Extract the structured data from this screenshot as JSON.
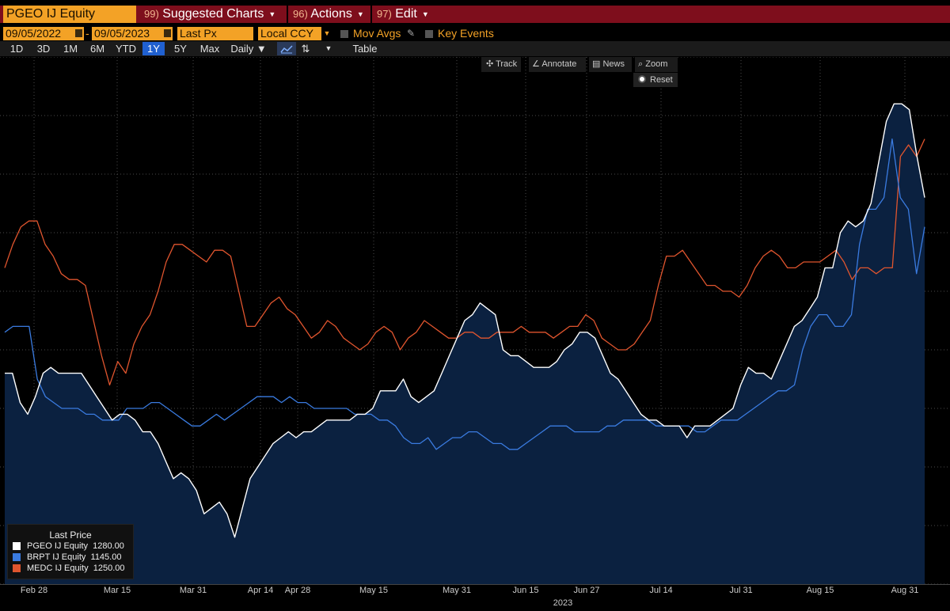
{
  "header": {
    "ticker": "PGEO IJ Equity",
    "menus": [
      {
        "num": "99)",
        "label": "Suggested Charts"
      },
      {
        "num": "96)",
        "label": "Actions"
      },
      {
        "num": "97)",
        "label": "Edit"
      }
    ]
  },
  "controls": {
    "start_date": "09/05/2022",
    "end_date": "09/05/2023",
    "field": "Last Px",
    "currency": "Local CCY",
    "mov_avgs": "Mov Avgs",
    "key_events": "Key Events"
  },
  "toolbar": {
    "ranges": [
      "1D",
      "3D",
      "1M",
      "6M",
      "YTD",
      "1Y",
      "5Y",
      "Max"
    ],
    "active_range": "1Y",
    "frequency": "Daily ▼",
    "table": "Table"
  },
  "chart_tools": {
    "track": "Track",
    "annotate": "Annotate",
    "news": "News",
    "zoom": "Zoom",
    "reset": "Reset"
  },
  "colors": {
    "pgeo": "#ffffff",
    "brpt": "#3a7be0",
    "medc": "#e0552e",
    "area_fill": "#0b2140",
    "accent": "#f3a226",
    "menu_bar": "#7e0e1c"
  },
  "legend": {
    "title": "Last Price",
    "items": [
      {
        "name": "PGEO IJ Equity",
        "value": "1280.00",
        "color": "#ffffff"
      },
      {
        "name": "BRPT IJ Equity",
        "value": "1145.00",
        "color": "#3a7be0"
      },
      {
        "name": "MEDC IJ Equity",
        "value": "1250.00",
        "color": "#e0552e"
      }
    ]
  },
  "xaxis": {
    "ticks": [
      "Feb 28",
      "Mar 15",
      "Mar 31",
      "Apr 14",
      "Apr 28",
      "May 15",
      "May 31",
      "Jun 15",
      "Jun 27",
      "Jul 14",
      "Jul 31",
      "Aug 15",
      "Aug 31"
    ],
    "year": "2023"
  },
  "chart_data": {
    "type": "line",
    "series": [
      {
        "name": "PGEO IJ Equity",
        "values": [
          5.6,
          5.6,
          5.1,
          4.9,
          5.2,
          5.6,
          5.7,
          5.6,
          5.6,
          5.6,
          5.6,
          5.4,
          5.2,
          5.0,
          4.8,
          4.9,
          4.9,
          4.8,
          4.6,
          4.6,
          4.4,
          4.1,
          3.8,
          3.9,
          3.8,
          3.6,
          3.2,
          3.3,
          3.4,
          3.2,
          2.8,
          3.3,
          3.8,
          4.0,
          4.2,
          4.4,
          4.5,
          4.6,
          4.5,
          4.6,
          4.6,
          4.7,
          4.8,
          4.8,
          4.8,
          4.8,
          4.9,
          4.9,
          5.0,
          5.3,
          5.3,
          5.3,
          5.5,
          5.2,
          5.1,
          5.2,
          5.3,
          5.6,
          5.9,
          6.2,
          6.5,
          6.6,
          6.8,
          6.7,
          6.6,
          6.0,
          5.9,
          5.9,
          5.8,
          5.7,
          5.7,
          5.7,
          5.8,
          6.0,
          6.1,
          6.3,
          6.3,
          6.2,
          5.9,
          5.6,
          5.5,
          5.3,
          5.1,
          4.9,
          4.8,
          4.8,
          4.7,
          4.7,
          4.7,
          4.5,
          4.7,
          4.7,
          4.7,
          4.8,
          4.9,
          5.0,
          5.4,
          5.7,
          5.6,
          5.6,
          5.5,
          5.8,
          6.1,
          6.4,
          6.5,
          6.7,
          6.9,
          7.4,
          7.4,
          8.0,
          8.2,
          8.1,
          8.2,
          8.5,
          9.2,
          9.9,
          10.2,
          10.2,
          10.1,
          9.3,
          8.6
        ],
        "color": "#ffffff"
      },
      {
        "name": "BRPT IJ Equity",
        "values": [
          6.3,
          6.4,
          6.4,
          6.4,
          5.5,
          5.2,
          5.1,
          5.0,
          5.0,
          5.0,
          4.9,
          4.9,
          4.8,
          4.8,
          4.8,
          5.0,
          5.0,
          5.0,
          5.1,
          5.1,
          5.0,
          4.9,
          4.8,
          4.7,
          4.7,
          4.8,
          4.9,
          4.8,
          4.9,
          5.0,
          5.1,
          5.2,
          5.2,
          5.2,
          5.1,
          5.2,
          5.1,
          5.1,
          5.0,
          5.0,
          5.0,
          5.0,
          5.0,
          4.9,
          4.9,
          4.9,
          4.8,
          4.8,
          4.7,
          4.5,
          4.4,
          4.4,
          4.5,
          4.3,
          4.4,
          4.5,
          4.5,
          4.6,
          4.6,
          4.5,
          4.4,
          4.4,
          4.3,
          4.3,
          4.4,
          4.5,
          4.6,
          4.7,
          4.7,
          4.7,
          4.6,
          4.6,
          4.6,
          4.6,
          4.7,
          4.7,
          4.8,
          4.8,
          4.8,
          4.8,
          4.7,
          4.7,
          4.7,
          4.7,
          4.7,
          4.6,
          4.6,
          4.7,
          4.8,
          4.8,
          4.8,
          4.9,
          5.0,
          5.1,
          5.2,
          5.3,
          5.3,
          5.4,
          6.0,
          6.4,
          6.6,
          6.6,
          6.4,
          6.4,
          6.6,
          7.8,
          8.4,
          8.4,
          8.6,
          9.6,
          8.6,
          8.4,
          7.3,
          8.1
        ],
        "color": "#3a7be0"
      },
      {
        "name": "MEDC IJ Equity",
        "values": [
          7.4,
          7.8,
          8.1,
          8.2,
          8.2,
          7.8,
          7.6,
          7.3,
          7.2,
          7.2,
          7.1,
          6.5,
          5.9,
          5.4,
          5.8,
          5.6,
          6.1,
          6.4,
          6.6,
          7.0,
          7.5,
          7.8,
          7.8,
          7.7,
          7.6,
          7.5,
          7.7,
          7.7,
          7.6,
          7.0,
          6.4,
          6.4,
          6.6,
          6.8,
          6.9,
          6.7,
          6.6,
          6.4,
          6.2,
          6.3,
          6.5,
          6.4,
          6.2,
          6.1,
          6.0,
          6.1,
          6.3,
          6.4,
          6.3,
          6.0,
          6.2,
          6.3,
          6.5,
          6.4,
          6.3,
          6.2,
          6.2,
          6.3,
          6.3,
          6.2,
          6.2,
          6.3,
          6.3,
          6.3,
          6.4,
          6.3,
          6.3,
          6.3,
          6.2,
          6.3,
          6.4,
          6.4,
          6.6,
          6.5,
          6.2,
          6.1,
          6.0,
          6.0,
          6.1,
          6.3,
          6.5,
          7.1,
          7.6,
          7.6,
          7.7,
          7.5,
          7.3,
          7.1,
          7.1,
          7.0,
          7.0,
          6.9,
          7.1,
          7.4,
          7.6,
          7.7,
          7.6,
          7.4,
          7.4,
          7.5,
          7.5,
          7.5,
          7.6,
          7.7,
          7.5,
          7.2,
          7.4,
          7.4,
          7.3,
          7.4,
          7.4,
          9.3,
          9.5,
          9.3,
          9.6
        ],
        "color": "#e0552e"
      }
    ],
    "ylim": [
      2,
      11
    ],
    "grid": true,
    "legend_placement": "bottom-left"
  }
}
